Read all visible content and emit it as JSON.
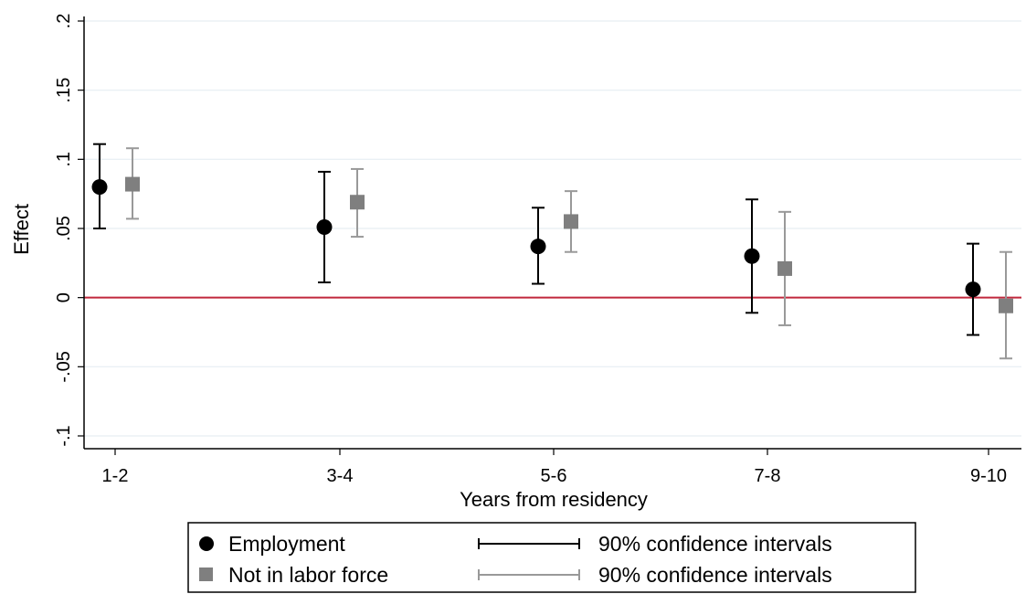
{
  "chart_data": {
    "type": "scatter",
    "xlabel": "Years from residency",
    "ylabel": "Effect",
    "categories": [
      "1-2",
      "3-4",
      "5-6",
      "7-8",
      "9-10"
    ],
    "ylim": [
      -0.1,
      0.2
    ],
    "yticks": [
      {
        "value": -0.1,
        "label": "-.1"
      },
      {
        "value": -0.05,
        "label": "-.05"
      },
      {
        "value": 0,
        "label": "0"
      },
      {
        "value": 0.05,
        "label": ".05"
      },
      {
        "value": 0.1,
        "label": ".1"
      },
      {
        "value": 0.15,
        "label": ".15"
      },
      {
        "value": 0.2,
        "label": ".2"
      }
    ],
    "grid": "horizontal",
    "reference_line": {
      "y": 0,
      "color": "#c0283c"
    },
    "series": [
      {
        "name": "Employment",
        "marker": "circle",
        "color": "#000000",
        "values": [
          0.08,
          0.051,
          0.037,
          0.03,
          0.006
        ],
        "ci_low": [
          0.05,
          0.011,
          0.01,
          -0.011,
          -0.027
        ],
        "ci_high": [
          0.111,
          0.091,
          0.065,
          0.071,
          0.039
        ]
      },
      {
        "name": "Not in labor force",
        "marker": "square",
        "color": "#7f7f7f",
        "values": [
          0.082,
          0.069,
          0.055,
          0.021,
          -0.006
        ],
        "ci_low": [
          0.057,
          0.044,
          0.033,
          -0.02,
          -0.044
        ],
        "ci_high": [
          0.108,
          0.093,
          0.077,
          0.062,
          0.033
        ]
      }
    ],
    "legend": {
      "position": "bottom",
      "ci_label": "90% confidence intervals"
    }
  }
}
